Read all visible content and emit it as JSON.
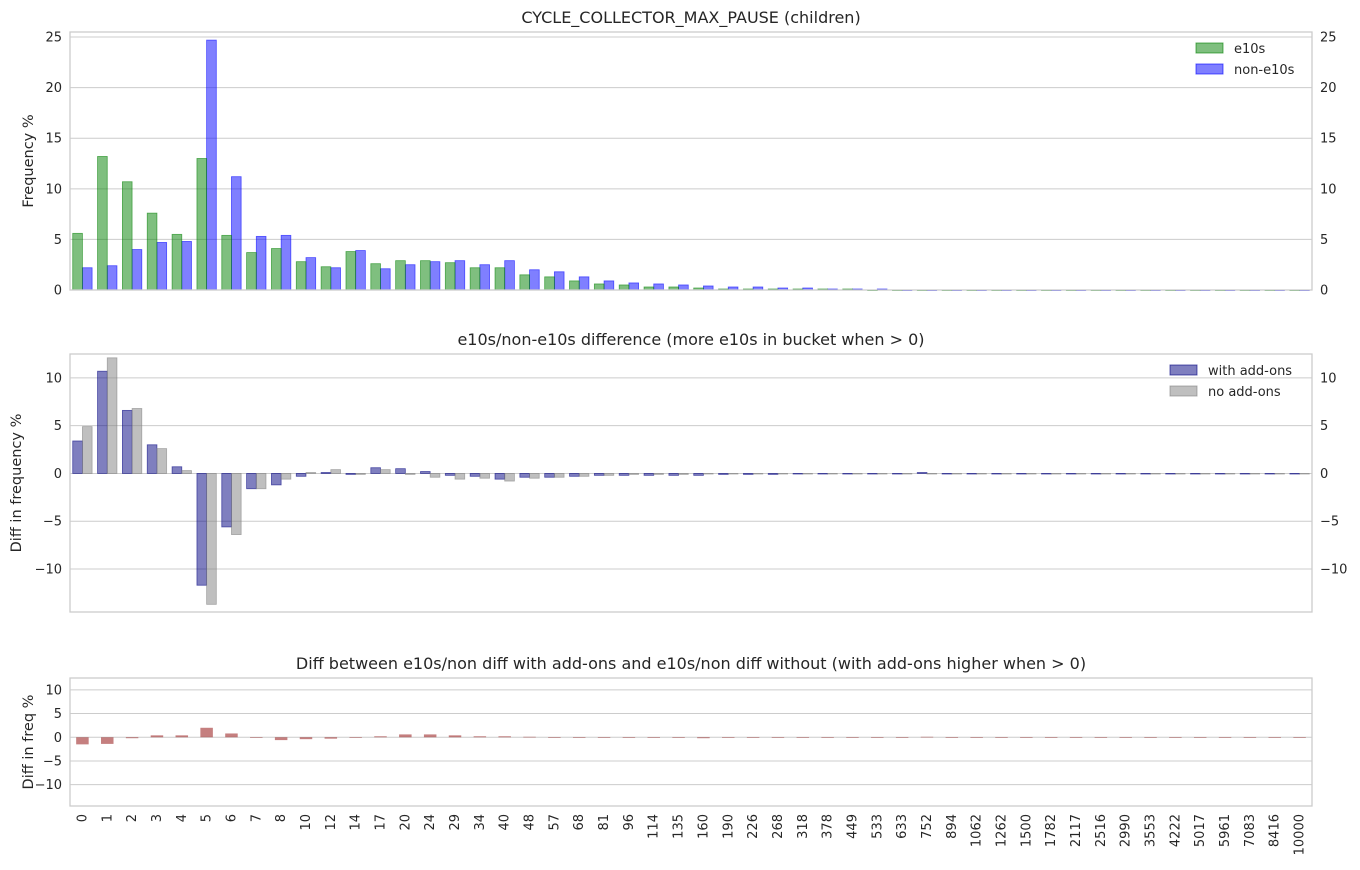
{
  "chart_data": [
    {
      "type": "bar",
      "title": "CYCLE_COLLECTOR_MAX_PAUSE (children)",
      "xlabel": "",
      "ylabel": "Frequency %",
      "ylim": [
        0,
        25.5
      ],
      "yticks": [
        0,
        5,
        10,
        15,
        20,
        25
      ],
      "grid": true,
      "legend": "top-right",
      "categories": [
        "0",
        "1",
        "2",
        "3",
        "4",
        "5",
        "6",
        "7",
        "8",
        "10",
        "12",
        "14",
        "17",
        "20",
        "24",
        "29",
        "34",
        "40",
        "48",
        "57",
        "68",
        "81",
        "96",
        "114",
        "135",
        "160",
        "190",
        "226",
        "268",
        "318",
        "378",
        "449",
        "533",
        "633",
        "752",
        "894",
        "1062",
        "1262",
        "1500",
        "1782",
        "2117",
        "2516",
        "2990",
        "3553",
        "4222",
        "5017",
        "5961",
        "7083",
        "8416",
        "10000"
      ],
      "series": [
        {
          "name": "non-e10s",
          "color": "#0000ff",
          "values": [
            2.2,
            2.4,
            4.0,
            4.7,
            4.8,
            24.7,
            11.2,
            5.3,
            5.4,
            3.2,
            2.2,
            3.9,
            2.1,
            2.5,
            2.8,
            2.9,
            2.5,
            2.9,
            2.0,
            1.8,
            1.3,
            0.9,
            0.7,
            0.6,
            0.5,
            0.4,
            0.3,
            0.3,
            0.2,
            0.2,
            0.1,
            0.1,
            0.1,
            0,
            0,
            0,
            0,
            0,
            0,
            0,
            0,
            0,
            0,
            0,
            0,
            0,
            0,
            0,
            0,
            0
          ]
        },
        {
          "name": "e10s",
          "color": "#008000",
          "values": [
            5.6,
            13.2,
            10.7,
            7.6,
            5.5,
            13.0,
            5.4,
            3.7,
            4.1,
            2.8,
            2.3,
            3.8,
            2.6,
            2.9,
            2.9,
            2.7,
            2.2,
            2.2,
            1.5,
            1.3,
            0.9,
            0.6,
            0.5,
            0.3,
            0.3,
            0.2,
            0.1,
            0.1,
            0.1,
            0.1,
            0.1,
            0.1,
            0,
            0,
            0,
            0,
            0,
            0,
            0,
            0,
            0,
            0,
            0,
            0,
            0,
            0,
            0,
            0,
            0,
            0
          ]
        }
      ]
    },
    {
      "type": "bar",
      "title": "e10s/non-e10s difference (more e10s in bucket when > 0)",
      "xlabel": "",
      "ylabel": "Diff in frequency %",
      "ylim": [
        -14.5,
        12.5
      ],
      "yticks": [
        -10,
        -5,
        0,
        5,
        10
      ],
      "grid": true,
      "legend": "top-right",
      "categories": [
        "0",
        "1",
        "2",
        "3",
        "4",
        "5",
        "6",
        "7",
        "8",
        "10",
        "12",
        "14",
        "17",
        "20",
        "24",
        "29",
        "34",
        "40",
        "48",
        "57",
        "68",
        "81",
        "96",
        "114",
        "135",
        "160",
        "190",
        "226",
        "268",
        "318",
        "378",
        "449",
        "533",
        "633",
        "752",
        "894",
        "1062",
        "1262",
        "1500",
        "1782",
        "2117",
        "2516",
        "2990",
        "3553",
        "4222",
        "5017",
        "5961",
        "7083",
        "8416",
        "10000"
      ],
      "series": [
        {
          "name": "with add-ons",
          "color": "#000080",
          "values": [
            3.4,
            10.7,
            6.6,
            3.0,
            0.7,
            -11.7,
            -5.6,
            -1.6,
            -1.2,
            -0.3,
            0.1,
            -0.1,
            0.6,
            0.5,
            0.2,
            -0.2,
            -0.3,
            -0.6,
            -0.4,
            -0.4,
            -0.3,
            -0.2,
            -0.2,
            -0.2,
            -0.2,
            -0.2,
            -0.1,
            -0.1,
            -0.1,
            0,
            0,
            0,
            0,
            0,
            0.1,
            0,
            0,
            0,
            0,
            0,
            0,
            0,
            0,
            0,
            0,
            0,
            0,
            0,
            0,
            0
          ]
        },
        {
          "name": "no add-ons",
          "color": "#808080",
          "values": [
            4.9,
            12.1,
            6.8,
            2.6,
            0.3,
            -13.7,
            -6.4,
            -1.6,
            -0.6,
            0.1,
            0.4,
            -0.1,
            0.4,
            -0.1,
            -0.4,
            -0.6,
            -0.5,
            -0.8,
            -0.5,
            -0.4,
            -0.3,
            -0.2,
            -0.1,
            -0.1,
            -0.1,
            0,
            0,
            0,
            0,
            0,
            0,
            0,
            0,
            0,
            0,
            0,
            0,
            0,
            0,
            0,
            0,
            0,
            0,
            0,
            0,
            0,
            0,
            0,
            0,
            0
          ]
        }
      ]
    },
    {
      "type": "bar",
      "title": "Diff between e10s/non diff with add-ons and e10s/non diff without (with add-ons higher when > 0)",
      "xlabel": "",
      "ylabel": "Diff in freq %",
      "ylim": [
        -14.5,
        12.5
      ],
      "yticks": [
        -10,
        -5,
        0,
        5,
        10
      ],
      "grid": true,
      "categories": [
        "0",
        "1",
        "2",
        "3",
        "4",
        "5",
        "6",
        "7",
        "8",
        "10",
        "12",
        "14",
        "17",
        "20",
        "24",
        "29",
        "34",
        "40",
        "48",
        "57",
        "68",
        "81",
        "96",
        "114",
        "135",
        "160",
        "190",
        "226",
        "268",
        "318",
        "378",
        "449",
        "533",
        "633",
        "752",
        "894",
        "1062",
        "1262",
        "1500",
        "1782",
        "2117",
        "2516",
        "2990",
        "3553",
        "4222",
        "5017",
        "5961",
        "7083",
        "8416",
        "10000"
      ],
      "series": [
        {
          "color": "#8b0000",
          "values": [
            -1.5,
            -1.4,
            -0.2,
            0.4,
            0.4,
            2.0,
            0.8,
            0,
            -0.6,
            -0.4,
            -0.3,
            0,
            0.2,
            0.6,
            0.6,
            0.4,
            0.2,
            0.2,
            0.1,
            0,
            0,
            0,
            -0.1,
            -0.1,
            -0.1,
            -0.2,
            -0.1,
            -0.1,
            -0.1,
            0,
            0,
            0,
            0,
            0,
            0.1,
            0,
            0,
            0,
            0,
            0,
            0,
            0,
            0,
            0,
            0,
            0,
            0,
            0,
            0,
            0
          ]
        }
      ]
    }
  ]
}
